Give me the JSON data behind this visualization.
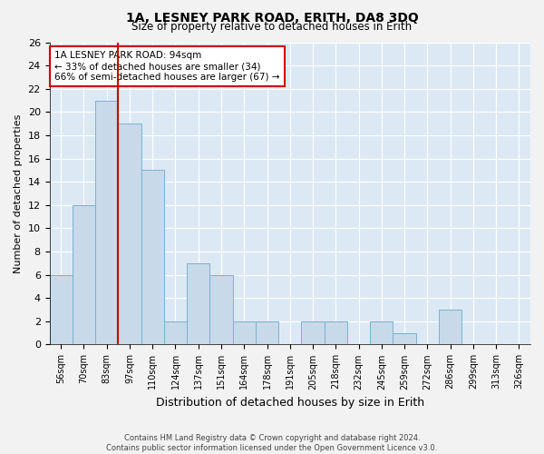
{
  "title": "1A, LESNEY PARK ROAD, ERITH, DA8 3DQ",
  "subtitle": "Size of property relative to detached houses in Erith",
  "xlabel": "Distribution of detached houses by size in Erith",
  "ylabel": "Number of detached properties",
  "categories": [
    "56sqm",
    "70sqm",
    "83sqm",
    "97sqm",
    "110sqm",
    "124sqm",
    "137sqm",
    "151sqm",
    "164sqm",
    "178sqm",
    "191sqm",
    "205sqm",
    "218sqm",
    "232sqm",
    "245sqm",
    "259sqm",
    "272sqm",
    "286sqm",
    "299sqm",
    "313sqm",
    "326sqm"
  ],
  "values": [
    6,
    12,
    21,
    19,
    15,
    2,
    7,
    6,
    2,
    2,
    0,
    2,
    2,
    0,
    2,
    1,
    0,
    3,
    0,
    0,
    0
  ],
  "bar_color": "#c8d9ea",
  "bar_edge_color": "#7ab0d4",
  "subject_line_color": "#cc0000",
  "annotation_text": "1A LESNEY PARK ROAD: 94sqm\n← 33% of detached houses are smaller (34)\n66% of semi-detached houses are larger (67) →",
  "annotation_box_color": "#ffffff",
  "annotation_box_edge_color": "#cc0000",
  "ylim": [
    0,
    26
  ],
  "yticks": [
    0,
    2,
    4,
    6,
    8,
    10,
    12,
    14,
    16,
    18,
    20,
    22,
    24,
    26
  ],
  "plot_bg_color": "#dce9f5",
  "fig_bg_color": "#f2f2f2",
  "grid_color": "#ffffff",
  "footer_line1": "Contains HM Land Registry data © Crown copyright and database right 2024.",
  "footer_line2": "Contains public sector information licensed under the Open Government Licence v3.0."
}
